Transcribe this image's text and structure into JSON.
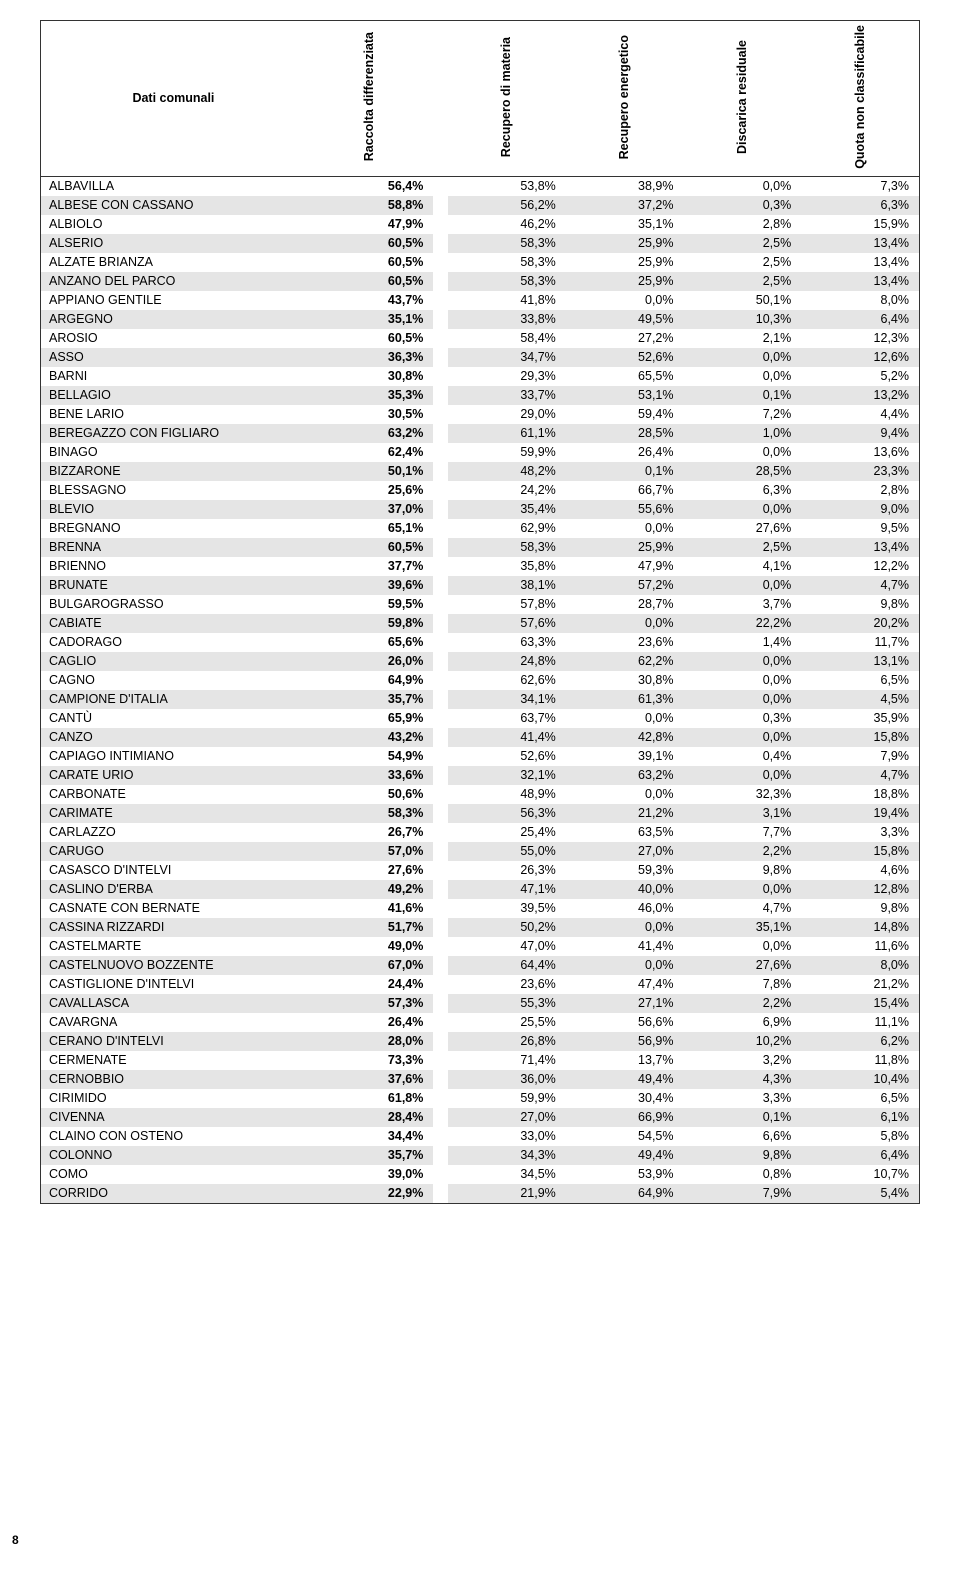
{
  "headers": {
    "name": "Dati comunali",
    "rd": "Raccolta\ndifferenziata",
    "c1": "Recupero di\nmateria",
    "c2": "Recupero\nenergetico",
    "c3": "Discarica\nresiduale",
    "c4": "Quota non\nclassificabile"
  },
  "page_number": "8",
  "colors": {
    "shaded": "#e5e5e5",
    "border": "#333333",
    "text": "#000000",
    "bg": "#ffffff"
  },
  "rows": [
    {
      "n": "ALBAVILLA",
      "rd": "56,4%",
      "v": [
        "53,8%",
        "38,9%",
        "0,0%",
        "7,3%"
      ],
      "s": 0
    },
    {
      "n": "ALBESE CON CASSANO",
      "rd": "58,8%",
      "v": [
        "56,2%",
        "37,2%",
        "0,3%",
        "6,3%"
      ],
      "s": 1
    },
    {
      "n": "ALBIOLO",
      "rd": "47,9%",
      "v": [
        "46,2%",
        "35,1%",
        "2,8%",
        "15,9%"
      ],
      "s": 0
    },
    {
      "n": "ALSERIO",
      "rd": "60,5%",
      "v": [
        "58,3%",
        "25,9%",
        "2,5%",
        "13,4%"
      ],
      "s": 1
    },
    {
      "n": "ALZATE BRIANZA",
      "rd": "60,5%",
      "v": [
        "58,3%",
        "25,9%",
        "2,5%",
        "13,4%"
      ],
      "s": 0
    },
    {
      "n": "ANZANO DEL PARCO",
      "rd": "60,5%",
      "v": [
        "58,3%",
        "25,9%",
        "2,5%",
        "13,4%"
      ],
      "s": 1
    },
    {
      "n": "APPIANO GENTILE",
      "rd": "43,7%",
      "v": [
        "41,8%",
        "0,0%",
        "50,1%",
        "8,0%"
      ],
      "s": 0
    },
    {
      "n": "ARGEGNO",
      "rd": "35,1%",
      "v": [
        "33,8%",
        "49,5%",
        "10,3%",
        "6,4%"
      ],
      "s": 1
    },
    {
      "n": "AROSIO",
      "rd": "60,5%",
      "v": [
        "58,4%",
        "27,2%",
        "2,1%",
        "12,3%"
      ],
      "s": 0
    },
    {
      "n": "ASSO",
      "rd": "36,3%",
      "v": [
        "34,7%",
        "52,6%",
        "0,0%",
        "12,6%"
      ],
      "s": 1
    },
    {
      "n": "BARNI",
      "rd": "30,8%",
      "v": [
        "29,3%",
        "65,5%",
        "0,0%",
        "5,2%"
      ],
      "s": 0
    },
    {
      "n": "BELLAGIO",
      "rd": "35,3%",
      "v": [
        "33,7%",
        "53,1%",
        "0,1%",
        "13,2%"
      ],
      "s": 1
    },
    {
      "n": "BENE LARIO",
      "rd": "30,5%",
      "v": [
        "29,0%",
        "59,4%",
        "7,2%",
        "4,4%"
      ],
      "s": 0
    },
    {
      "n": "BEREGAZZO CON FIGLIARO",
      "rd": "63,2%",
      "v": [
        "61,1%",
        "28,5%",
        "1,0%",
        "9,4%"
      ],
      "s": 1
    },
    {
      "n": "BINAGO",
      "rd": "62,4%",
      "v": [
        "59,9%",
        "26,4%",
        "0,0%",
        "13,6%"
      ],
      "s": 0
    },
    {
      "n": "BIZZARONE",
      "rd": "50,1%",
      "v": [
        "48,2%",
        "0,1%",
        "28,5%",
        "23,3%"
      ],
      "s": 1
    },
    {
      "n": "BLESSAGNO",
      "rd": "25,6%",
      "v": [
        "24,2%",
        "66,7%",
        "6,3%",
        "2,8%"
      ],
      "s": 0
    },
    {
      "n": "BLEVIO",
      "rd": "37,0%",
      "v": [
        "35,4%",
        "55,6%",
        "0,0%",
        "9,0%"
      ],
      "s": 1
    },
    {
      "n": "BREGNANO",
      "rd": "65,1%",
      "v": [
        "62,9%",
        "0,0%",
        "27,6%",
        "9,5%"
      ],
      "s": 0
    },
    {
      "n": "BRENNA",
      "rd": "60,5%",
      "v": [
        "58,3%",
        "25,9%",
        "2,5%",
        "13,4%"
      ],
      "s": 1
    },
    {
      "n": "BRIENNO",
      "rd": "37,7%",
      "v": [
        "35,8%",
        "47,9%",
        "4,1%",
        "12,2%"
      ],
      "s": 0
    },
    {
      "n": "BRUNATE",
      "rd": "39,6%",
      "v": [
        "38,1%",
        "57,2%",
        "0,0%",
        "4,7%"
      ],
      "s": 1
    },
    {
      "n": "BULGAROGRASSO",
      "rd": "59,5%",
      "v": [
        "57,8%",
        "28,7%",
        "3,7%",
        "9,8%"
      ],
      "s": 0
    },
    {
      "n": "CABIATE",
      "rd": "59,8%",
      "v": [
        "57,6%",
        "0,0%",
        "22,2%",
        "20,2%"
      ],
      "s": 1
    },
    {
      "n": "CADORAGO",
      "rd": "65,6%",
      "v": [
        "63,3%",
        "23,6%",
        "1,4%",
        "11,7%"
      ],
      "s": 0
    },
    {
      "n": "CAGLIO",
      "rd": "26,0%",
      "v": [
        "24,8%",
        "62,2%",
        "0,0%",
        "13,1%"
      ],
      "s": 1
    },
    {
      "n": "CAGNO",
      "rd": "64,9%",
      "v": [
        "62,6%",
        "30,8%",
        "0,0%",
        "6,5%"
      ],
      "s": 0
    },
    {
      "n": "CAMPIONE D'ITALIA",
      "rd": "35,7%",
      "v": [
        "34,1%",
        "61,3%",
        "0,0%",
        "4,5%"
      ],
      "s": 1
    },
    {
      "n": "CANTÙ",
      "rd": "65,9%",
      "v": [
        "63,7%",
        "0,0%",
        "0,3%",
        "35,9%"
      ],
      "s": 0
    },
    {
      "n": "CANZO",
      "rd": "43,2%",
      "v": [
        "41,4%",
        "42,8%",
        "0,0%",
        "15,8%"
      ],
      "s": 1
    },
    {
      "n": "CAPIAGO INTIMIANO",
      "rd": "54,9%",
      "v": [
        "52,6%",
        "39,1%",
        "0,4%",
        "7,9%"
      ],
      "s": 0
    },
    {
      "n": "CARATE URIO",
      "rd": "33,6%",
      "v": [
        "32,1%",
        "63,2%",
        "0,0%",
        "4,7%"
      ],
      "s": 1
    },
    {
      "n": "CARBONATE",
      "rd": "50,6%",
      "v": [
        "48,9%",
        "0,0%",
        "32,3%",
        "18,8%"
      ],
      "s": 0
    },
    {
      "n": "CARIMATE",
      "rd": "58,3%",
      "v": [
        "56,3%",
        "21,2%",
        "3,1%",
        "19,4%"
      ],
      "s": 1
    },
    {
      "n": "CARLAZZO",
      "rd": "26,7%",
      "v": [
        "25,4%",
        "63,5%",
        "7,7%",
        "3,3%"
      ],
      "s": 0
    },
    {
      "n": "CARUGO",
      "rd": "57,0%",
      "v": [
        "55,0%",
        "27,0%",
        "2,2%",
        "15,8%"
      ],
      "s": 1
    },
    {
      "n": "CASASCO D'INTELVI",
      "rd": "27,6%",
      "v": [
        "26,3%",
        "59,3%",
        "9,8%",
        "4,6%"
      ],
      "s": 0
    },
    {
      "n": "CASLINO D'ERBA",
      "rd": "49,2%",
      "v": [
        "47,1%",
        "40,0%",
        "0,0%",
        "12,8%"
      ],
      "s": 1
    },
    {
      "n": "CASNATE CON BERNATE",
      "rd": "41,6%",
      "v": [
        "39,5%",
        "46,0%",
        "4,7%",
        "9,8%"
      ],
      "s": 0
    },
    {
      "n": "CASSINA RIZZARDI",
      "rd": "51,7%",
      "v": [
        "50,2%",
        "0,0%",
        "35,1%",
        "14,8%"
      ],
      "s": 1
    },
    {
      "n": "CASTELMARTE",
      "rd": "49,0%",
      "v": [
        "47,0%",
        "41,4%",
        "0,0%",
        "11,6%"
      ],
      "s": 0
    },
    {
      "n": "CASTELNUOVO BOZZENTE",
      "rd": "67,0%",
      "v": [
        "64,4%",
        "0,0%",
        "27,6%",
        "8,0%"
      ],
      "s": 1
    },
    {
      "n": "CASTIGLIONE D'INTELVI",
      "rd": "24,4%",
      "v": [
        "23,6%",
        "47,4%",
        "7,8%",
        "21,2%"
      ],
      "s": 0
    },
    {
      "n": "CAVALLASCA",
      "rd": "57,3%",
      "v": [
        "55,3%",
        "27,1%",
        "2,2%",
        "15,4%"
      ],
      "s": 1
    },
    {
      "n": "CAVARGNA",
      "rd": "26,4%",
      "v": [
        "25,5%",
        "56,6%",
        "6,9%",
        "11,1%"
      ],
      "s": 0
    },
    {
      "n": "CERANO D'INTELVI",
      "rd": "28,0%",
      "v": [
        "26,8%",
        "56,9%",
        "10,2%",
        "6,2%"
      ],
      "s": 1
    },
    {
      "n": "CERMENATE",
      "rd": "73,3%",
      "v": [
        "71,4%",
        "13,7%",
        "3,2%",
        "11,8%"
      ],
      "s": 0
    },
    {
      "n": "CERNOBBIO",
      "rd": "37,6%",
      "v": [
        "36,0%",
        "49,4%",
        "4,3%",
        "10,4%"
      ],
      "s": 1
    },
    {
      "n": "CIRIMIDO",
      "rd": "61,8%",
      "v": [
        "59,9%",
        "30,4%",
        "3,3%",
        "6,5%"
      ],
      "s": 0
    },
    {
      "n": "CIVENNA",
      "rd": "28,4%",
      "v": [
        "27,0%",
        "66,9%",
        "0,1%",
        "6,1%"
      ],
      "s": 1
    },
    {
      "n": "CLAINO CON OSTENO",
      "rd": "34,4%",
      "v": [
        "33,0%",
        "54,5%",
        "6,6%",
        "5,8%"
      ],
      "s": 0
    },
    {
      "n": "COLONNO",
      "rd": "35,7%",
      "v": [
        "34,3%",
        "49,4%",
        "9,8%",
        "6,4%"
      ],
      "s": 1
    },
    {
      "n": "COMO",
      "rd": "39,0%",
      "v": [
        "34,5%",
        "53,9%",
        "0,8%",
        "10,7%"
      ],
      "s": 0
    },
    {
      "n": "CORRIDO",
      "rd": "22,9%",
      "v": [
        "21,9%",
        "64,9%",
        "7,9%",
        "5,4%"
      ],
      "s": 1
    }
  ]
}
